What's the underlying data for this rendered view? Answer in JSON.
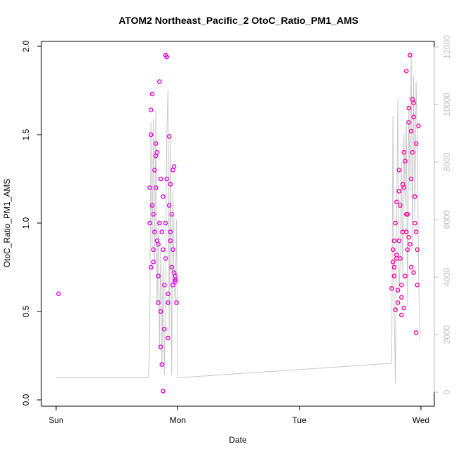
{
  "chart_data": {
    "type": "scatter",
    "title": "ATOM2 Northeast_Pacific_2 OtoC_Ratio_PM1_AMS",
    "xlabel": "Date",
    "ylabel": "OtoC_Ratio_PM1_AMS",
    "x_ticks": [
      {
        "value": 0,
        "label": "Sun"
      },
      {
        "value": 1,
        "label": "Mon"
      },
      {
        "value": 2,
        "label": "Tue"
      },
      {
        "value": 3,
        "label": "Wed"
      }
    ],
    "y_ticks": [
      "0.0",
      "0.5",
      "1.0",
      "1.5",
      "2.0"
    ],
    "y_tick_values": [
      0.0,
      0.5,
      1.0,
      1.5,
      2.0
    ],
    "y2_ticks": [
      "0",
      "2000",
      "4000",
      "6000",
      "8000",
      "10000",
      "12000"
    ],
    "y2_tick_values": [
      0,
      2000,
      4000,
      6000,
      8000,
      10000,
      12000
    ],
    "ylim": [
      0,
      2.0
    ],
    "y2lim": [
      0,
      12000
    ],
    "xlim": [
      0,
      3
    ],
    "grid": false,
    "colors": {
      "points": "#e000e0",
      "points_alt": "#ff00a0",
      "line": "#c8c8c8",
      "axis": "#000000",
      "right_axis": "#bfbfbf"
    },
    "series": [
      {
        "role": "scatter-points",
        "x": [
          0.02,
          0.77,
          0.78,
          0.79,
          0.8,
          0.81,
          0.82,
          0.83,
          0.84,
          0.85,
          0.86,
          0.87,
          0.88,
          0.89,
          0.9,
          0.91,
          0.92,
          0.93,
          0.94,
          0.95,
          0.96,
          0.97,
          0.98,
          0.99,
          0.77,
          0.78,
          0.79,
          0.8,
          0.81,
          0.82,
          0.83,
          0.84,
          0.85,
          0.86,
          0.87,
          0.88,
          0.89,
          0.9,
          0.91,
          0.92,
          0.93,
          0.94,
          0.95,
          0.96,
          0.97,
          0.98,
          0.78,
          0.8,
          0.82,
          0.84,
          0.86,
          0.88,
          0.9,
          0.92,
          0.94,
          0.96,
          0.98,
          2.76,
          2.77,
          2.78,
          2.79,
          2.8,
          2.81,
          2.82,
          2.83,
          2.84,
          2.85,
          2.86,
          2.87,
          2.88,
          2.89,
          2.9,
          2.91,
          2.92,
          2.93,
          2.94,
          2.95,
          2.96,
          2.97,
          2.98,
          2.77,
          2.78,
          2.79,
          2.8,
          2.81,
          2.82,
          2.83,
          2.84,
          2.85,
          2.86,
          2.87,
          2.88,
          2.89,
          2.9,
          2.91,
          2.92,
          2.93,
          2.94,
          2.95,
          2.96,
          2.97,
          2.78,
          2.8,
          2.82,
          2.84,
          2.86,
          2.88,
          2.9,
          2.92,
          2.94,
          2.96
        ],
        "y": [
          0.6,
          1.2,
          1.5,
          1.73,
          1.05,
          0.95,
          1.45,
          0.9,
          0.55,
          1.8,
          0.3,
          0.2,
          0.85,
          0.4,
          1.95,
          1.94,
          0.55,
          1.49,
          1.22,
          0.75,
          0.65,
          1.32,
          0.7,
          0.55,
          1.0,
          0.75,
          1.1,
          0.85,
          1.3,
          1.2,
          1.4,
          0.7,
          1.0,
          0.5,
          0.95,
          1.15,
          0.65,
          0.8,
          1.25,
          0.6,
          1.1,
          0.9,
          1.05,
          0.85,
          0.72,
          0.67,
          1.64,
          0.78,
          1.38,
          0.88,
          1.25,
          0.05,
          1.0,
          0.35,
          0.95,
          1.3,
          0.68,
          0.63,
          0.78,
          0.9,
          0.51,
          1.12,
          0.62,
          1.3,
          0.8,
          0.48,
          0.95,
          1.2,
          0.7,
          1.05,
          0.85,
          1.57,
          1.95,
          0.75,
          1.4,
          1.6,
          1.0,
          1.45,
          0.85,
          1.55,
          0.85,
          0.75,
          1.0,
          0.8,
          0.55,
          0.9,
          1.1,
          0.65,
          1.22,
          0.52,
          1.35,
          0.95,
          1.05,
          1.65,
          0.88,
          1.25,
          1.7,
          0.72,
          1.15,
          0.95,
          0.65,
          0.7,
          0.82,
          1.18,
          0.58,
          1.4,
          1.86,
          0.92,
          1.52,
          1.68,
          0.38
        ]
      },
      {
        "role": "background-line",
        "axis": "right",
        "x": [
          0.0,
          0.76,
          0.77,
          0.78,
          0.79,
          0.8,
          0.81,
          0.82,
          0.83,
          0.84,
          0.85,
          0.86,
          0.87,
          0.88,
          0.89,
          0.9,
          0.91,
          0.92,
          0.93,
          0.94,
          0.95,
          0.96,
          0.97,
          0.98,
          0.99,
          1.0,
          2.75,
          2.76,
          2.77,
          2.78,
          2.79,
          2.8,
          2.81,
          2.82,
          2.83,
          2.84,
          2.85,
          2.86,
          2.87,
          2.88,
          2.89,
          2.9,
          2.91,
          2.92,
          2.93,
          2.94,
          2.95,
          2.96,
          2.97,
          2.98,
          2.99
        ],
        "y": [
          500,
          500,
          2000,
          9400,
          5000,
          9500,
          4500,
          9800,
          3000,
          6000,
          1500,
          5000,
          800,
          4500,
          600,
          3500,
          9000,
          10500,
          2000,
          9000,
          600,
          7000,
          4000,
          3000,
          6000,
          500,
          1000,
          1100,
          9600,
          3000,
          300,
          6000,
          10200,
          3500,
          4500,
          8000,
          4000,
          9000,
          6500,
          9500,
          3000,
          10000,
          7000,
          11800,
          5000,
          11000,
          6000,
          10800,
          9000,
          4500,
          1800
        ]
      }
    ]
  }
}
